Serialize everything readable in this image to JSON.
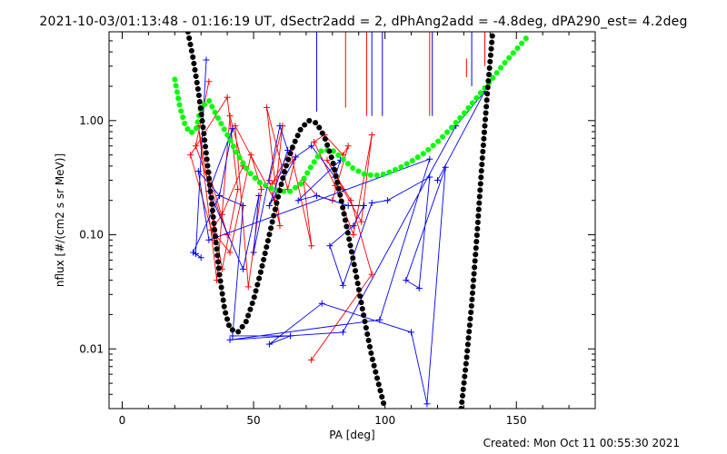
{
  "title": "2021-10-03/01:13:48 - 01:16:19 UT, dSectr2add = 2, dPhAng2add = -4.8deg, dPA290_est=  4.2deg",
  "footer": "Created: Mon Oct 11 00:55:30 2021",
  "chart_data": {
    "type": "scatter",
    "xlabel": "PA [deg]",
    "ylabel": "nflux [#/(cm2 s sr MeV)]",
    "xlim": [
      -5,
      180
    ],
    "ylim": [
      0.003,
      6.0
    ],
    "ylog": true,
    "x_ticks": [
      0,
      50,
      100,
      150
    ],
    "x_tick_labels": [
      "0",
      "50",
      "100",
      "150"
    ],
    "y_ticks": [
      0.01,
      0.1,
      1.0
    ],
    "y_tick_labels": [
      "0.01",
      "0.10",
      "1.00"
    ],
    "series": [
      {
        "color": "#ff0000",
        "marker": "+",
        "connected": true,
        "x": [
          33,
          28,
          40,
          33,
          35,
          26,
          40,
          44,
          38,
          29,
          36,
          41,
          46,
          38,
          34,
          41,
          49,
          53,
          48,
          43,
          58,
          61,
          56,
          60,
          55,
          63,
          66,
          57,
          64,
          72,
          69,
          74,
          80,
          86,
          84,
          77,
          73,
          81,
          88,
          95,
          91,
          84,
          78,
          87,
          95,
          72
        ],
        "y": [
          2.2,
          0.6,
          0.1,
          0.35,
          0.09,
          0.5,
          1.6,
          0.25,
          0.05,
          0.9,
          0.04,
          1.1,
          0.4,
          0.15,
          0.11,
          0.07,
          0.5,
          0.25,
          0.035,
          0.9,
          0.2,
          0.9,
          0.3,
          0.12,
          1.3,
          0.25,
          0.48,
          0.28,
          0.55,
          0.08,
          0.3,
          0.22,
          0.2,
          0.6,
          0.5,
          0.75,
          0.65,
          0.27,
          0.1,
          0.75,
          0.13,
          0.25,
          0.45,
          0.2,
          0.045,
          0.008
        ]
      },
      {
        "color": "#0000ff",
        "marker": "+",
        "connected": true,
        "x": [
          32,
          28,
          30,
          27,
          37,
          42,
          33,
          46,
          52,
          50,
          60,
          63,
          56,
          66,
          72,
          81,
          83,
          67,
          74,
          86,
          92,
          88,
          79,
          84,
          95,
          101,
          117,
          113,
          108,
          123,
          116,
          110,
          76,
          56,
          64,
          42,
          46,
          37,
          29,
          33,
          117,
          98,
          41,
          84,
          127,
          138,
          120
        ],
        "y": [
          3.4,
          0.068,
          0.063,
          0.07,
          0.22,
          0.85,
          0.24,
          0.05,
          0.22,
          0.07,
          0.9,
          0.55,
          0.18,
          0.48,
          0.6,
          0.32,
          0.45,
          0.2,
          0.22,
          0.18,
          0.18,
          0.12,
          0.08,
          0.036,
          0.19,
          0.2,
          0.32,
          0.034,
          0.04,
          0.39,
          0.0033,
          0.014,
          0.025,
          0.011,
          0.013,
          0.013,
          0.18,
          0.22,
          0.36,
          0.09,
          0.46,
          0.018,
          0.012,
          0.014,
          0.9,
          1.8,
          0.3
        ]
      },
      {
        "color": "#00ff00",
        "style": "thick-dotted-curve",
        "x": [
          20,
          22,
          24,
          26,
          28,
          30,
          33,
          36,
          40,
          44,
          48,
          52,
          56,
          60,
          64,
          68,
          72,
          76,
          80,
          84,
          88,
          92,
          96,
          100,
          105,
          110,
          115,
          120,
          125,
          130,
          135,
          140,
          145,
          150,
          155
        ],
        "y": [
          2.3,
          1.3,
          0.9,
          0.78,
          0.82,
          1.3,
          1.5,
          1.1,
          0.75,
          0.5,
          0.36,
          0.29,
          0.26,
          0.24,
          0.24,
          0.28,
          0.4,
          0.55,
          0.55,
          0.46,
          0.38,
          0.34,
          0.33,
          0.34,
          0.38,
          0.44,
          0.52,
          0.65,
          0.85,
          1.15,
          1.6,
          2.2,
          3.1,
          4.2,
          5.7
        ]
      },
      {
        "color": "#000000",
        "style": "thick-dotted-curve",
        "x": [
          25,
          27,
          29,
          31,
          33,
          35,
          37,
          39,
          41,
          44,
          47,
          50,
          53,
          56,
          59,
          62,
          65,
          68,
          71,
          74,
          77,
          80,
          83,
          86,
          89,
          92,
          95,
          98,
          100
        ],
        "y": [
          6.0,
          3.5,
          1.8,
          0.8,
          0.32,
          0.12,
          0.045,
          0.022,
          0.015,
          0.014,
          0.017,
          0.027,
          0.05,
          0.1,
          0.2,
          0.38,
          0.6,
          0.85,
          1.0,
          0.95,
          0.72,
          0.45,
          0.22,
          0.1,
          0.045,
          0.019,
          0.0085,
          0.0045,
          0.003
        ]
      },
      {
        "color": "#000000",
        "style": "thick-dotted-curve",
        "x": [
          129,
          131,
          133,
          135,
          137,
          139,
          141
        ],
        "y": [
          0.003,
          0.008,
          0.025,
          0.1,
          0.45,
          1.8,
          6.0
        ]
      }
    ],
    "vertical_lines": [
      {
        "x": 74,
        "color": "#0000ff",
        "top": 6.0,
        "bottom": 1.2
      },
      {
        "x": 85,
        "color": "#ff0000",
        "top": 6.0,
        "bottom": 1.3
      },
      {
        "x": 93,
        "color": "#ff0000",
        "top": 6.0,
        "bottom": 1.1
      },
      {
        "x": 95,
        "color": "#0000ff",
        "top": 6.0,
        "bottom": 1.1
      },
      {
        "x": 99,
        "color": "#0000ff",
        "top": 6.0,
        "bottom": 1.1
      },
      {
        "x": 117,
        "color": "#ff0000",
        "top": 6.0,
        "bottom": 1.1
      },
      {
        "x": 118,
        "color": "#0000ff",
        "top": 6.0,
        "bottom": 1.1
      },
      {
        "x": 133,
        "color": "#0000ff",
        "top": 6.0,
        "bottom": 2.0
      },
      {
        "x": 131,
        "color": "#ff0000",
        "top": 3.5,
        "bottom": 2.4
      },
      {
        "x": 138,
        "color": "#ff0000",
        "top": 6.0,
        "bottom": 3.0
      }
    ]
  }
}
